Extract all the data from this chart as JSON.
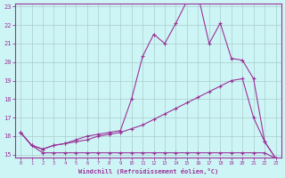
{
  "xlabel": "Windchill (Refroidissement éolien,°C)",
  "background_color": "#cef5f5",
  "grid_color": "#aacccc",
  "line_color": "#993399",
  "x_values": [
    0,
    1,
    2,
    3,
    4,
    5,
    6,
    7,
    8,
    9,
    10,
    11,
    12,
    13,
    14,
    15,
    16,
    17,
    18,
    19,
    20,
    21,
    22,
    23
  ],
  "line1": [
    16.2,
    15.5,
    15.1,
    15.1,
    15.1,
    15.1,
    15.1,
    15.1,
    15.1,
    15.1,
    15.1,
    15.1,
    15.1,
    15.1,
    15.1,
    15.1,
    15.1,
    15.1,
    15.1,
    15.1,
    15.1,
    15.1,
    15.1,
    14.8
  ],
  "line2": [
    16.2,
    15.5,
    15.3,
    15.5,
    15.6,
    15.7,
    15.8,
    16.0,
    16.1,
    16.2,
    16.4,
    16.6,
    16.9,
    17.2,
    17.5,
    17.8,
    18.1,
    18.4,
    18.7,
    19.0,
    19.1,
    17.0,
    15.7,
    14.8
  ],
  "line3": [
    16.2,
    15.5,
    15.3,
    15.5,
    15.6,
    15.8,
    16.0,
    16.1,
    16.2,
    16.3,
    18.0,
    20.3,
    21.5,
    21.0,
    22.1,
    23.3,
    23.6,
    21.0,
    22.1,
    20.2,
    20.1,
    19.1,
    15.7,
    14.8
  ],
  "ylim": [
    15,
    23
  ],
  "xlim": [
    -0.5,
    23.5
  ],
  "yticks": [
    15,
    16,
    17,
    18,
    19,
    20,
    21,
    22,
    23
  ],
  "xticks": [
    0,
    1,
    2,
    3,
    4,
    5,
    6,
    7,
    8,
    9,
    10,
    11,
    12,
    13,
    14,
    15,
    16,
    17,
    18,
    19,
    20,
    21,
    22,
    23
  ]
}
